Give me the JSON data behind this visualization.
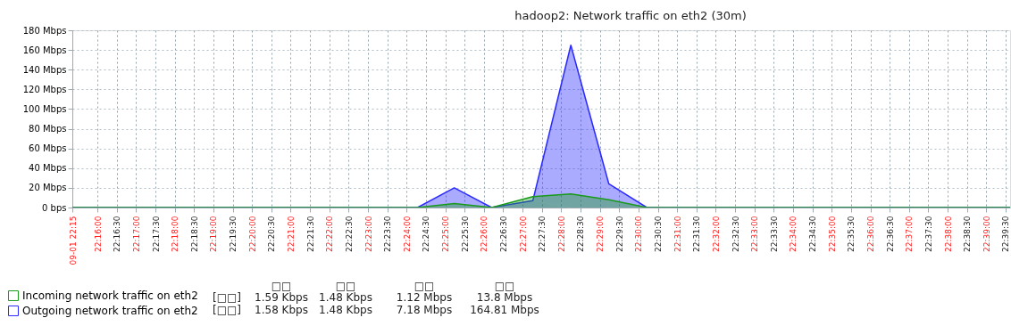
{
  "chart_data": {
    "type": "area",
    "title": "hadoop2: Network traffic on eth2 (30m)",
    "x": [
      22.25583,
      22.40472,
      22.42056,
      22.43667,
      22.45444,
      22.47083,
      22.48722,
      22.50361,
      22.66028
    ],
    "series": [
      {
        "name": "Incoming network traffic on eth2",
        "color": "#1a9a1a",
        "values": [
          0,
          0,
          4,
          0,
          11,
          13.8,
          8,
          0,
          0
        ]
      },
      {
        "name": "Outgoing network traffic on eth2",
        "color": "#2a2aff",
        "values": [
          0,
          0,
          20,
          0,
          7,
          164.81,
          24,
          0,
          0
        ]
      }
    ],
    "xlim": [
      22.25583,
      22.66028
    ],
    "xticks": [
      {
        "value": 22.25583,
        "label": "09-01 22:15"
      },
      {
        "value": 22.26667,
        "label": "22:16:00"
      },
      {
        "value": 22.275,
        "label": "22:16:30"
      },
      {
        "value": 22.28333,
        "label": "22:17:00"
      },
      {
        "value": 22.29167,
        "label": "22:17:30"
      },
      {
        "value": 22.3,
        "label": "22:18:00"
      },
      {
        "value": 22.30833,
        "label": "22:18:30"
      },
      {
        "value": 22.31667,
        "label": "22:19:00"
      },
      {
        "value": 22.325,
        "label": "22:19:30"
      },
      {
        "value": 22.33333,
        "label": "22:20:00"
      },
      {
        "value": 22.34167,
        "label": "22:20:30"
      },
      {
        "value": 22.35,
        "label": "22:21:00"
      },
      {
        "value": 22.35833,
        "label": "22:21:30"
      },
      {
        "value": 22.36667,
        "label": "22:22:00"
      },
      {
        "value": 22.375,
        "label": "22:22:30"
      },
      {
        "value": 22.38333,
        "label": "22:23:00"
      },
      {
        "value": 22.39167,
        "label": "22:23:30"
      },
      {
        "value": 22.4,
        "label": "22:24:00"
      },
      {
        "value": 22.40833,
        "label": "22:24:30"
      },
      {
        "value": 22.41667,
        "label": "22:25:00"
      },
      {
        "value": 22.425,
        "label": "22:25:30"
      },
      {
        "value": 22.43333,
        "label": "22:26:00"
      },
      {
        "value": 22.44167,
        "label": "22:26:30"
      },
      {
        "value": 22.45,
        "label": "22:27:00"
      },
      {
        "value": 22.45833,
        "label": "22:27:30"
      },
      {
        "value": 22.46667,
        "label": "22:28:00"
      },
      {
        "value": 22.475,
        "label": "22:28:30"
      },
      {
        "value": 22.48333,
        "label": "22:29:00"
      },
      {
        "value": 22.49167,
        "label": "22:29:30"
      },
      {
        "value": 22.5,
        "label": "22:30:00"
      },
      {
        "value": 22.50833,
        "label": "22:30:30"
      },
      {
        "value": 22.51667,
        "label": "22:31:00"
      },
      {
        "value": 22.525,
        "label": "22:31:30"
      },
      {
        "value": 22.53333,
        "label": "22:32:00"
      },
      {
        "value": 22.54167,
        "label": "22:32:30"
      },
      {
        "value": 22.55,
        "label": "22:33:00"
      },
      {
        "value": 22.55833,
        "label": "22:33:30"
      },
      {
        "value": 22.56667,
        "label": "22:34:00"
      },
      {
        "value": 22.575,
        "label": "22:34:30"
      },
      {
        "value": 22.58333,
        "label": "22:35:00"
      },
      {
        "value": 22.59167,
        "label": "22:35:30"
      },
      {
        "value": 22.6,
        "label": "22:36:00"
      },
      {
        "value": 22.60833,
        "label": "22:36:30"
      },
      {
        "value": 22.61667,
        "label": "22:37:00"
      },
      {
        "value": 22.625,
        "label": "22:37:30"
      },
      {
        "value": 22.63333,
        "label": "22:38:00"
      },
      {
        "value": 22.64167,
        "label": "22:38:30"
      },
      {
        "value": 22.65,
        "label": "22:39:00"
      },
      {
        "value": 22.65833,
        "label": "22:39:30"
      }
    ],
    "ylim": [
      0,
      180
    ],
    "yticks": [
      {
        "value": 0,
        "label": "0 bps"
      },
      {
        "value": 20,
        "label": "20 Mbps"
      },
      {
        "value": 40,
        "label": "40 Mbps"
      },
      {
        "value": 60,
        "label": "60 Mbps"
      },
      {
        "value": 80,
        "label": "80 Mbps"
      },
      {
        "value": 100,
        "label": "100 Mbps"
      },
      {
        "value": 120,
        "label": "120 Mbps"
      },
      {
        "value": 140,
        "label": "140 Mbps"
      },
      {
        "value": 160,
        "label": "160 Mbps"
      },
      {
        "value": 180,
        "label": "180 Mbps"
      }
    ],
    "grid": true,
    "legend": "bottom left",
    "annotations": [
      "□□",
      "□□",
      "□□",
      "□□",
      "[□□]",
      "1.59 Kbps",
      "1.48 Kbps",
      "1.12 Mbps",
      "13.8 Mbps",
      "[□□]",
      "1.58 Kbps",
      "1.48 Kbps",
      "7.18 Mbps",
      "164.81 Mbps"
    ]
  }
}
